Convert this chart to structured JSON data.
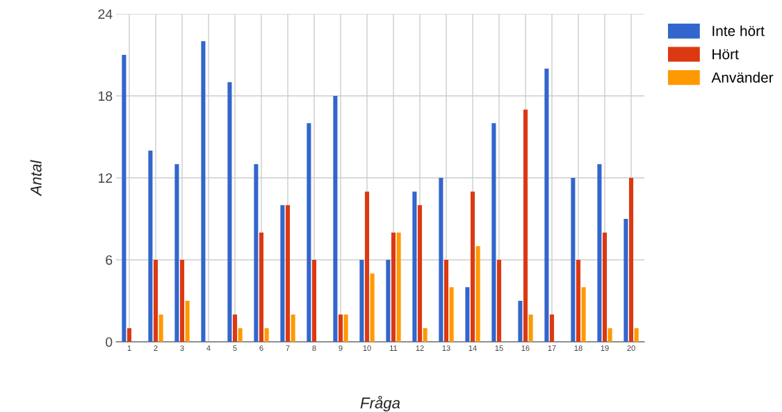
{
  "chart_data": {
    "type": "bar",
    "xlabel": "Fråga",
    "ylabel": "Antal",
    "categories": [
      "1",
      "2",
      "3",
      "4",
      "5",
      "6",
      "7",
      "8",
      "9",
      "10",
      "11",
      "12",
      "13",
      "14",
      "15",
      "16",
      "17",
      "18",
      "19",
      "20"
    ],
    "series": [
      {
        "name": "Inte hört",
        "color": "#3366cc",
        "values": [
          21,
          14,
          13,
          22,
          19,
          13,
          10,
          16,
          18,
          6,
          6,
          11,
          12,
          4,
          16,
          3,
          20,
          12,
          13,
          9
        ]
      },
      {
        "name": "Hört",
        "color": "#dc3912",
        "values": [
          1,
          6,
          6,
          0,
          2,
          8,
          10,
          6,
          2,
          11,
          8,
          10,
          6,
          11,
          6,
          17,
          2,
          6,
          8,
          12
        ]
      },
      {
        "name": "Använder",
        "color": "#ff9900",
        "values": [
          0,
          2,
          3,
          0,
          1,
          1,
          2,
          0,
          2,
          5,
          8,
          1,
          4,
          7,
          0,
          2,
          0,
          4,
          1,
          1
        ]
      }
    ],
    "ylim": [
      0,
      24
    ],
    "yticks": [
      0,
      6,
      12,
      18,
      24
    ],
    "grid": true,
    "legend": "top right"
  }
}
